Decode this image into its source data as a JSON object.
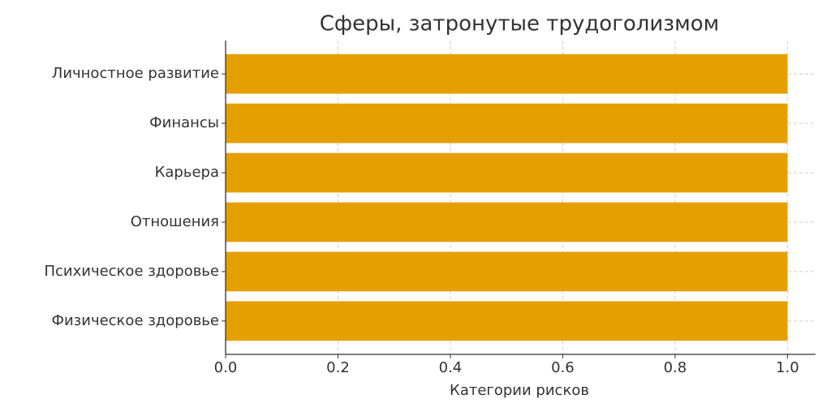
{
  "chart_data": {
    "type": "barh",
    "title": "Сферы, затронутые трудоголизмом",
    "x_label": "Категории рисков",
    "categories": [
      "Физическое здоровье",
      "Психическое здоровье",
      "Отношения",
      "Карьера",
      "Финансы",
      "Личностное развитие"
    ],
    "values": [
      1.0,
      1.0,
      1.0,
      1.0,
      1.0,
      1.0
    ],
    "color": "#e69f00",
    "xlim": [
      0,
      1.05
    ],
    "xticks": [
      {
        "value": 0,
        "label": "0.0"
      },
      0.2,
      0.4,
      0.6,
      0.8,
      {
        "value": 1,
        "label": "1.0"
      }
    ],
    "grid": true
  }
}
